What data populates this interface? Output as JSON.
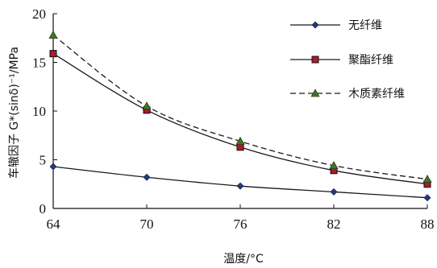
{
  "chart_data": {
    "type": "line",
    "xlabel": "温度/°C",
    "ylabel": "车辙因子 G*(sinδ)⁻¹/MPa",
    "x": [
      64,
      70,
      76,
      82,
      88
    ],
    "x_tick_labels": [
      "64",
      "70",
      "76",
      "82",
      "88"
    ],
    "y_tick_labels": [
      "0",
      "5",
      "10",
      "15",
      "20"
    ],
    "xlim": [
      64,
      88
    ],
    "ylim": [
      0,
      20
    ],
    "grid": false,
    "legend_position": "top-right",
    "series": [
      {
        "name": "无纤维",
        "values": [
          4.3,
          3.2,
          2.3,
          1.7,
          1.1
        ],
        "marker": "diamond",
        "line_style": "solid",
        "color": "#1a1a1a",
        "marker_color": "#1f3a8a"
      },
      {
        "name": "聚酯纤维",
        "values": [
          15.9,
          10.1,
          6.3,
          3.9,
          2.5
        ],
        "marker": "square",
        "line_style": "solid",
        "color": "#1a1a1a",
        "marker_color": "#b0182b"
      },
      {
        "name": "木质素纤维",
        "values": [
          17.8,
          10.5,
          6.9,
          4.4,
          3.0
        ],
        "marker": "triangle",
        "line_style": "dashed",
        "color": "#1a1a1a",
        "marker_color": "#3d7a1e"
      }
    ]
  }
}
